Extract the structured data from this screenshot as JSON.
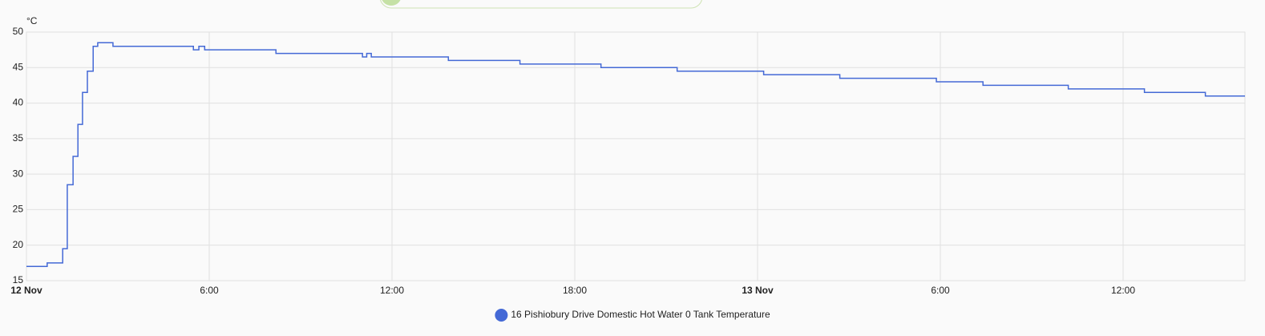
{
  "chart_data": {
    "type": "line",
    "line_shape": "step",
    "y_unit_label": "°C",
    "x": [
      0,
      0.68,
      1.19,
      1.34,
      1.53,
      1.69,
      1.84,
      2.0,
      2.19,
      2.34,
      2.84,
      5.48,
      5.66,
      5.85,
      8.19,
      11.03,
      11.17,
      11.32,
      13.85,
      16.2,
      18.86,
      21.36,
      24.2,
      26.7,
      29.87,
      31.4,
      34.2,
      36.7,
      38.7,
      40
    ],
    "series": [
      {
        "name": "16 Pishiobury Drive Domestic Hot Water 0 Tank Temperature",
        "color": "#4469d6",
        "values": [
          17,
          17.5,
          19.5,
          28.5,
          32.5,
          37,
          41.5,
          44.5,
          48,
          48.5,
          48,
          47.5,
          48,
          47.5,
          47,
          46.5,
          47,
          46.5,
          46,
          45.5,
          45,
          44.5,
          44,
          43.5,
          43,
          42.5,
          42,
          41.5,
          41,
          41
        ]
      }
    ],
    "xlim": [
      0,
      40
    ],
    "xticks": [
      {
        "value": 0,
        "label": "12 Nov"
      },
      {
        "value": 6,
        "label": "6:00"
      },
      {
        "value": 12,
        "label": "12:00"
      },
      {
        "value": 18,
        "label": "18:00"
      },
      {
        "value": 24,
        "label": "13 Nov"
      },
      {
        "value": 30,
        "label": "6:00"
      },
      {
        "value": 36,
        "label": "12:00"
      }
    ],
    "ylim": [
      15,
      50
    ],
    "yticks": [
      15,
      20,
      25,
      30,
      35,
      40,
      45,
      50
    ],
    "grid": true
  }
}
